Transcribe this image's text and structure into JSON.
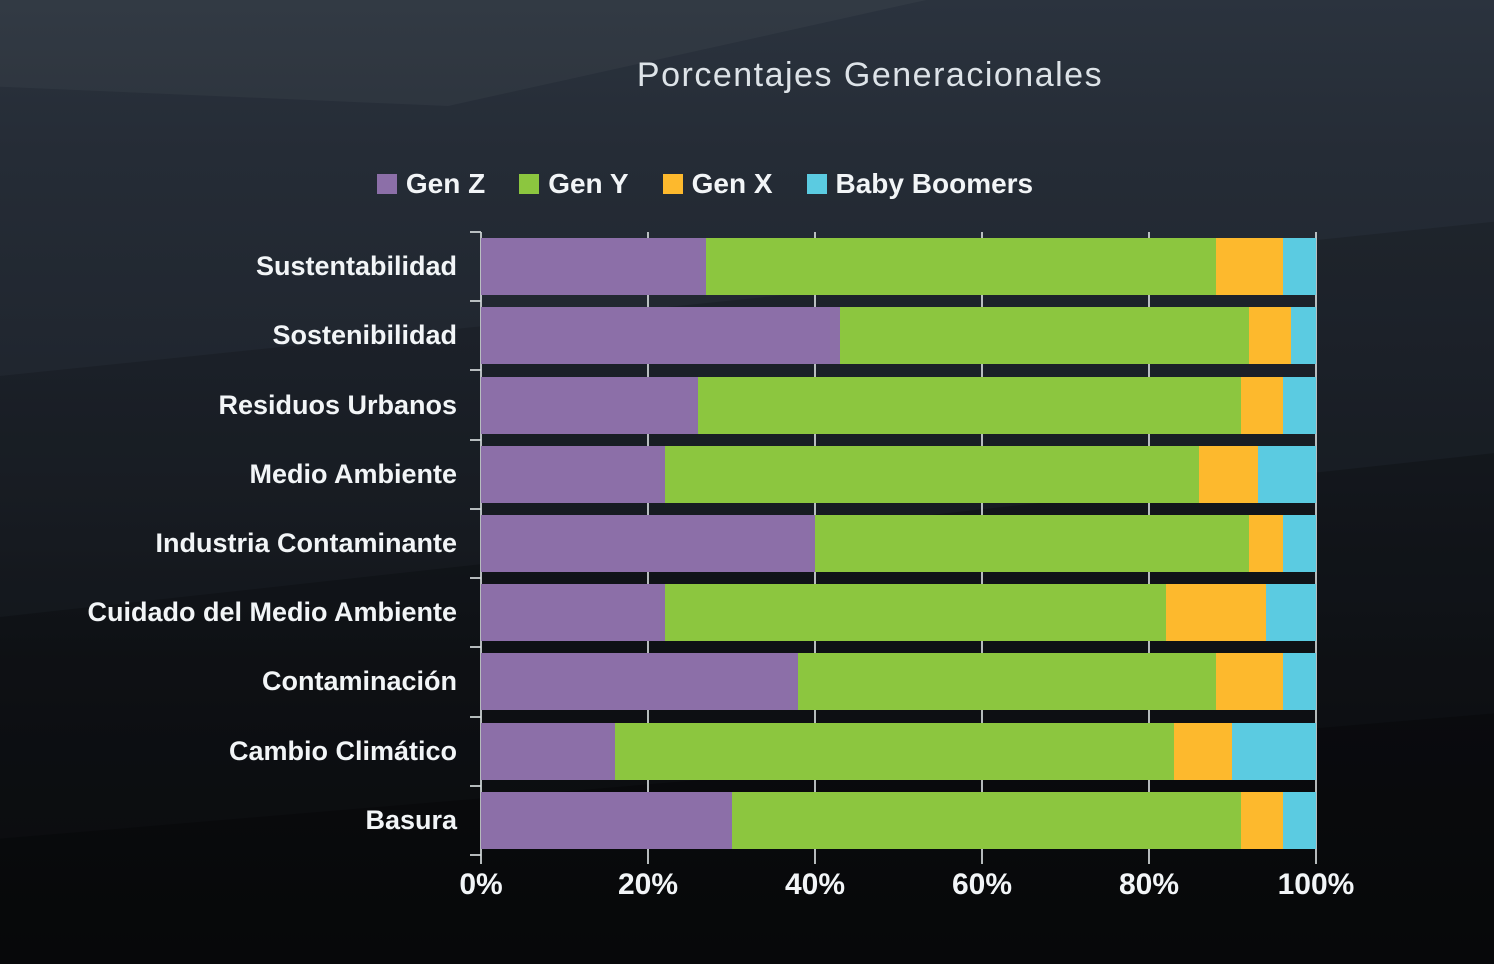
{
  "title": "Porcentajes Generacionales",
  "colors": {
    "gen_z": "#8C6FA8",
    "gen_y": "#8CC63F",
    "gen_x": "#FDB92D",
    "baby_boomers": "#5BCBE1",
    "gridline": "#D4D9DB",
    "label_text": "#F2F5F7",
    "title_text": "#DDE3E8",
    "background_top": "#2B333E",
    "background_bottom": "#0F1114"
  },
  "chart_data": {
    "type": "bar",
    "stacked": true,
    "orientation": "horizontal",
    "title": "Porcentajes Generacionales",
    "legend_position": "top",
    "grid": true,
    "xlim": [
      0,
      100
    ],
    "x_tick_labels": [
      "0%",
      "20%",
      "40%",
      "60%",
      "80%",
      "100%"
    ],
    "x_tick_values": [
      0,
      20,
      40,
      60,
      80,
      100
    ],
    "categories": [
      "Sustentabilidad",
      "Sostenibilidad",
      "Residuos Urbanos",
      "Medio Ambiente",
      "Industria Contaminante",
      "Cuidado del Medio Ambiente",
      "Contaminación",
      "Cambio Climático",
      "Basura"
    ],
    "series": [
      {
        "name": "Gen Z",
        "color": "#8C6FA8",
        "values": [
          27,
          43,
          26,
          22,
          40,
          22,
          38,
          16,
          30
        ]
      },
      {
        "name": "Gen Y",
        "color": "#8CC63F",
        "values": [
          61,
          49,
          65,
          64,
          52,
          60,
          50,
          67,
          61
        ]
      },
      {
        "name": "Gen X",
        "color": "#FDB92D",
        "values": [
          8,
          5,
          5,
          7,
          4,
          12,
          8,
          7,
          5
        ]
      },
      {
        "name": "Baby Boomers",
        "color": "#5BCBE1",
        "values": [
          4,
          3,
          4,
          7,
          4,
          6,
          4,
          10,
          4
        ]
      }
    ]
  }
}
